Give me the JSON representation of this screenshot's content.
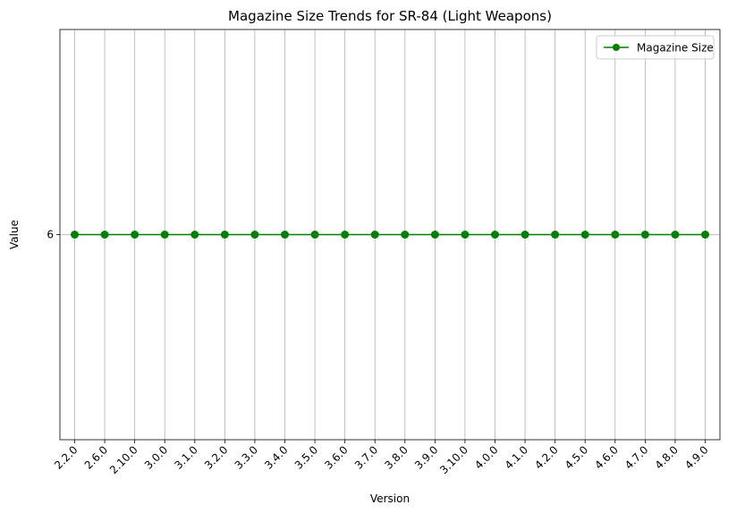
{
  "chart_data": {
    "type": "line",
    "title": "Magazine Size Trends for SR-84 (Light Weapons)",
    "xlabel": "Version",
    "ylabel": "Value",
    "categories": [
      "2.2.0",
      "2.6.0",
      "2.10.0",
      "3.0.0",
      "3.1.0",
      "3.2.0",
      "3.3.0",
      "3.4.0",
      "3.5.0",
      "3.6.0",
      "3.7.0",
      "3.8.0",
      "3.9.0",
      "3.10.0",
      "4.0.0",
      "4.1.0",
      "4.2.0",
      "4.5.0",
      "4.6.0",
      "4.7.0",
      "4.8.0",
      "4.9.0"
    ],
    "series": [
      {
        "name": "Magazine Size",
        "color": "#008000",
        "marker": "circle",
        "values": [
          6,
          6,
          6,
          6,
          6,
          6,
          6,
          6,
          6,
          6,
          6,
          6,
          6,
          6,
          6,
          6,
          6,
          6,
          6,
          6,
          6,
          6
        ]
      }
    ],
    "ylim": [
      5.8,
      6.2
    ],
    "yticks": [
      6
    ],
    "ytick_labels": [
      "6"
    ],
    "grid": true,
    "legend_position": "upper right"
  }
}
